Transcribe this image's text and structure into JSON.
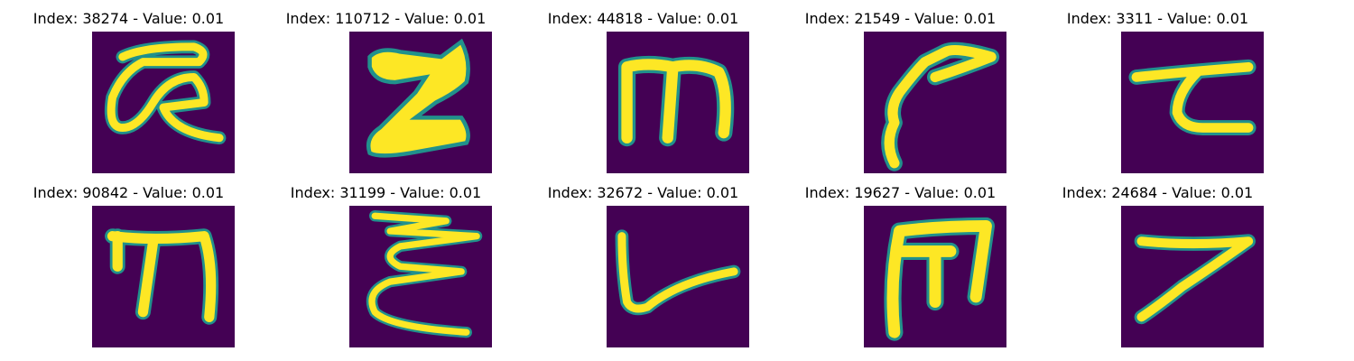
{
  "colors": {
    "background": "#440154",
    "stroke": "#fde725",
    "edge": "#21918c"
  },
  "images": [
    {
      "title": "Index: 38274 - Value: 0.01",
      "glyph": "alpha-like"
    },
    {
      "title": "Index: 110712 - Value: 0.01",
      "glyph": "z-like"
    },
    {
      "title": "Index: 44818 - Value: 0.01",
      "glyph": "m-like"
    },
    {
      "title": "Index: 21549 - Value: 0.01",
      "glyph": "hook"
    },
    {
      "title": "Index: 3311 - Value: 0.01",
      "glyph": "tau-like"
    },
    {
      "title": "Index: 90842 - Value: 0.01",
      "glyph": "m-like"
    },
    {
      "title": "Index: 31199 - Value: 0.01",
      "glyph": "zigzag"
    },
    {
      "title": "Index: 32672 - Value: 0.01",
      "glyph": "v-like"
    },
    {
      "title": "Index: 19627 - Value: 0.01",
      "glyph": "m-like"
    },
    {
      "title": "Index: 24684 - Value: 0.01",
      "glyph": "seven-like"
    }
  ]
}
